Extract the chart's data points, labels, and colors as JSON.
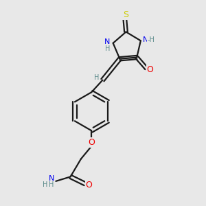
{
  "bg_color": "#e8e8e8",
  "line_color": "#1a1a1a",
  "bond_width": 1.6,
  "atom_colors": {
    "N": "#0000ee",
    "O": "#ee0000",
    "S": "#cccc00",
    "C": "#1a1a1a",
    "H": "#5a8a8a"
  },
  "font_size": 7.5
}
